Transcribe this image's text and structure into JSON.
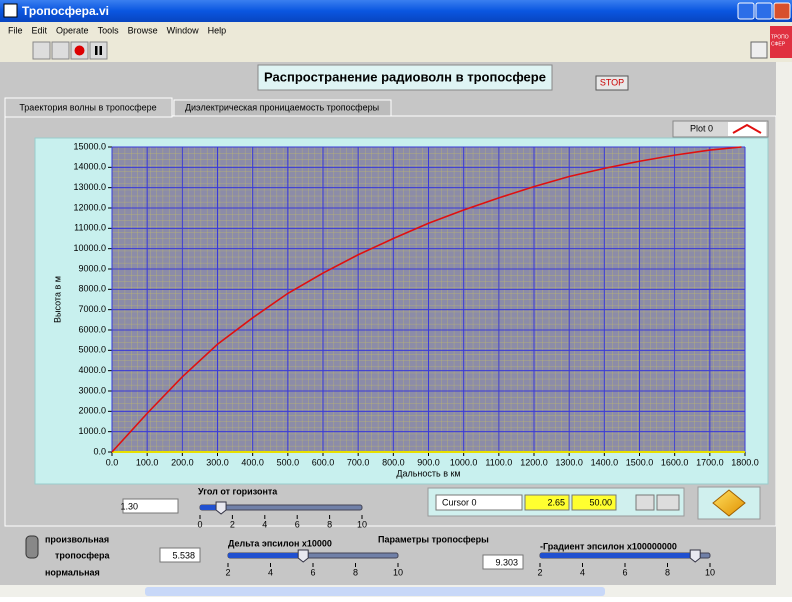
{
  "window": {
    "title": "Тропосфера.vi",
    "menu": [
      "File",
      "Edit",
      "Operate",
      "Tools",
      "Browse",
      "Window",
      "Help"
    ],
    "icon_text": [
      "ТРОПО",
      "СФЕР"
    ]
  },
  "panel": {
    "heading": "Распространение радиоволн в тропосфере",
    "stop": "STOP",
    "tabs": [
      "Траектория волны в тропосфере",
      "Диэлектрическая проницаемость тропосферы"
    ]
  },
  "chart_data": {
    "type": "line",
    "xlabel": "Дальность в км",
    "ylabel": "Высота в м",
    "color": "#e01010",
    "grid": true,
    "series": [
      {
        "name": "Plot 0",
        "color": "#e01010",
        "x": [
          0,
          100,
          200,
          300,
          400,
          500,
          600,
          700,
          800,
          900,
          1000,
          1100,
          1200,
          1300,
          1400,
          1500,
          1600,
          1700,
          1790
        ],
        "values": [
          0,
          1900,
          3700,
          5300,
          6600,
          7800,
          8800,
          9700,
          10500,
          11250,
          11900,
          12500,
          13050,
          13550,
          13950,
          14300,
          14600,
          14850,
          15000
        ]
      }
    ],
    "xlim": [
      0,
      1800
    ],
    "ylim": [
      0,
      15000
    ],
    "xticks": [
      {
        "value": 0,
        "label": "0.0"
      },
      {
        "value": 100,
        "label": "100.0"
      },
      {
        "value": 200,
        "label": "200.0"
      },
      {
        "value": 300,
        "label": "300.0"
      },
      {
        "value": 400,
        "label": "400.0"
      },
      {
        "value": 500,
        "label": "500.0"
      },
      {
        "value": 600,
        "label": "600.0"
      },
      {
        "value": 700,
        "label": "700.0"
      },
      {
        "value": 800,
        "label": "800.0"
      },
      {
        "value": 900,
        "label": "900.0"
      },
      {
        "value": 1000,
        "label": "1000.0"
      },
      {
        "value": 1100,
        "label": "1100.0"
      },
      {
        "value": 1200,
        "label": "1200.0"
      },
      {
        "value": 1300,
        "label": "1300.0"
      },
      {
        "value": 1400,
        "label": "1400.0"
      },
      {
        "value": 1500,
        "label": "1500.0"
      },
      {
        "value": 1600,
        "label": "1600.0"
      },
      {
        "value": 1700,
        "label": "1700.0"
      },
      {
        "value": 1800,
        "label": "1800.0"
      }
    ],
    "yticks": [
      {
        "value": 0,
        "label": "0.0"
      },
      {
        "value": 1000,
        "label": "1000.0"
      },
      {
        "value": 2000,
        "label": "2000.0"
      },
      {
        "value": 3000,
        "label": "3000.0"
      },
      {
        "value": 4000,
        "label": "4000.0"
      },
      {
        "value": 5000,
        "label": "5000.0"
      },
      {
        "value": 6000,
        "label": "6000.0"
      },
      {
        "value": 7000,
        "label": "7000.0"
      },
      {
        "value": 8000,
        "label": "8000.0"
      },
      {
        "value": 9000,
        "label": "9000.0"
      },
      {
        "value": 10000,
        "label": "10000.0"
      },
      {
        "value": 11000,
        "label": "11000.0"
      },
      {
        "value": 12000,
        "label": "12000.0"
      },
      {
        "value": 13000,
        "label": "13000.0"
      },
      {
        "value": 14000,
        "label": "14000.0"
      },
      {
        "value": 15000,
        "label": "15000.0"
      }
    ]
  },
  "cursor": {
    "name": "Cursor 0",
    "x": "2.65",
    "y": "50.00"
  },
  "controls": {
    "angle": {
      "label": "Угол от горизонта",
      "value": 1.3,
      "display": "1.30",
      "lim": [
        0,
        10
      ],
      "ticks": [
        0,
        2,
        4,
        6,
        8,
        10
      ]
    },
    "delta": {
      "label": "Дельта эпсилон x10000",
      "value": 5.538,
      "display": "5.538",
      "lim": [
        2,
        10
      ],
      "ticks": [
        2,
        4,
        6,
        8,
        10
      ]
    },
    "gradient": {
      "label": "-Градиент эпсилон x100000000",
      "value": 9.303,
      "display": "9.303",
      "lim": [
        2,
        10
      ],
      "ticks": [
        2,
        4,
        6,
        8,
        10
      ]
    },
    "params_label": "Параметры тропосферы",
    "switch": [
      "произвольная",
      "тропосфера",
      "нормальная"
    ]
  }
}
